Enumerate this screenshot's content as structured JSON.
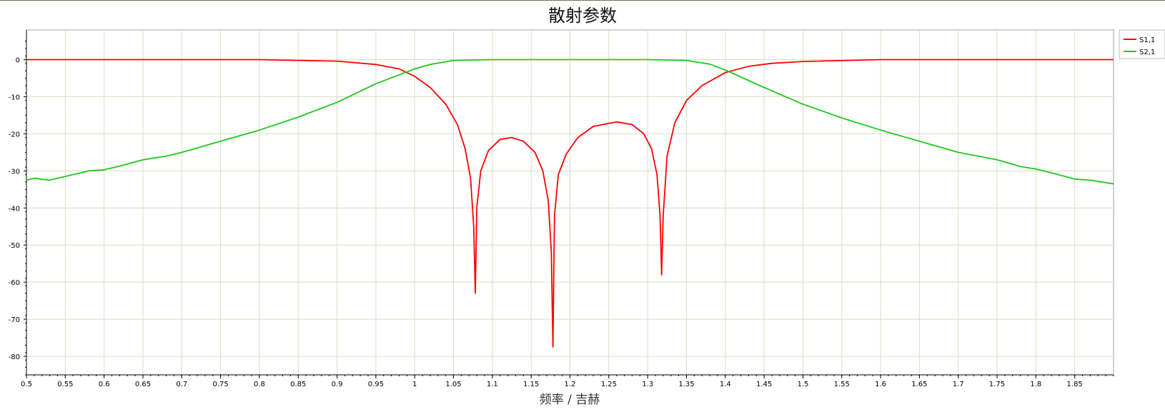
{
  "chart_data": {
    "type": "line",
    "title": "散射参数",
    "xlabel": "频率 / 吉赫",
    "ylabel": "",
    "xlim": [
      0.5,
      1.9
    ],
    "ylim": [
      -85,
      8
    ],
    "x_ticks": [
      0.5,
      0.55,
      0.6,
      0.65,
      0.7,
      0.75,
      0.8,
      0.85,
      0.9,
      0.95,
      1,
      1.05,
      1.1,
      1.15,
      1.2,
      1.25,
      1.3,
      1.35,
      1.4,
      1.45,
      1.5,
      1.55,
      1.6,
      1.65,
      1.7,
      1.75,
      1.8,
      1.85
    ],
    "y_ticks": [
      0,
      -10,
      -20,
      -30,
      -40,
      -50,
      -60,
      -70,
      -80
    ],
    "grid": true,
    "legend_position": "top-right",
    "series": [
      {
        "name": "S1,1",
        "color": "#ff0000",
        "x": [
          0.5,
          0.8,
          0.85,
          0.9,
          0.95,
          0.98,
          1.0,
          1.02,
          1.04,
          1.055,
          1.065,
          1.072,
          1.076,
          1.078,
          1.08,
          1.085,
          1.095,
          1.11,
          1.125,
          1.14,
          1.155,
          1.165,
          1.172,
          1.176,
          1.178,
          1.18,
          1.185,
          1.195,
          1.21,
          1.23,
          1.26,
          1.28,
          1.295,
          1.305,
          1.312,
          1.316,
          1.318,
          1.32,
          1.325,
          1.335,
          1.35,
          1.37,
          1.4,
          1.43,
          1.46,
          1.5,
          1.6,
          1.9
        ],
        "y": [
          0,
          0,
          -0.2,
          -0.4,
          -1.3,
          -2.5,
          -4.5,
          -7.5,
          -12,
          -17.5,
          -24,
          -32,
          -45,
          -63,
          -40,
          -30,
          -24.5,
          -21.5,
          -21,
          -22,
          -25,
          -30,
          -38,
          -52,
          -77.5,
          -42,
          -31,
          -25.5,
          -21,
          -18,
          -16.8,
          -17.5,
          -20,
          -24,
          -31,
          -42,
          -58,
          -42,
          -26,
          -17,
          -11,
          -7,
          -3.5,
          -1.8,
          -1,
          -0.5,
          0,
          0
        ]
      },
      {
        "name": "S2,1",
        "color": "#1ec81e",
        "x": [
          0.5,
          0.51,
          0.53,
          0.55,
          0.58,
          0.6,
          0.62,
          0.65,
          0.68,
          0.7,
          0.75,
          0.8,
          0.85,
          0.9,
          0.95,
          1.0,
          1.02,
          1.05,
          1.1,
          1.2,
          1.3,
          1.35,
          1.38,
          1.4,
          1.45,
          1.5,
          1.55,
          1.6,
          1.65,
          1.7,
          1.75,
          1.78,
          1.8,
          1.82,
          1.85,
          1.87,
          1.9
        ],
        "y": [
          -32.5,
          -32,
          -32.5,
          -31.5,
          -30,
          -29.7,
          -28.7,
          -27,
          -26,
          -25,
          -22,
          -19,
          -15.5,
          -11.5,
          -6.5,
          -2.5,
          -1.3,
          -0.2,
          0,
          0,
          0,
          -0.2,
          -1.2,
          -2.8,
          -7.5,
          -12,
          -15.7,
          -19,
          -22,
          -25,
          -27,
          -28.8,
          -29.5,
          -30.5,
          -32.2,
          -32.5,
          -33.5
        ]
      }
    ]
  }
}
